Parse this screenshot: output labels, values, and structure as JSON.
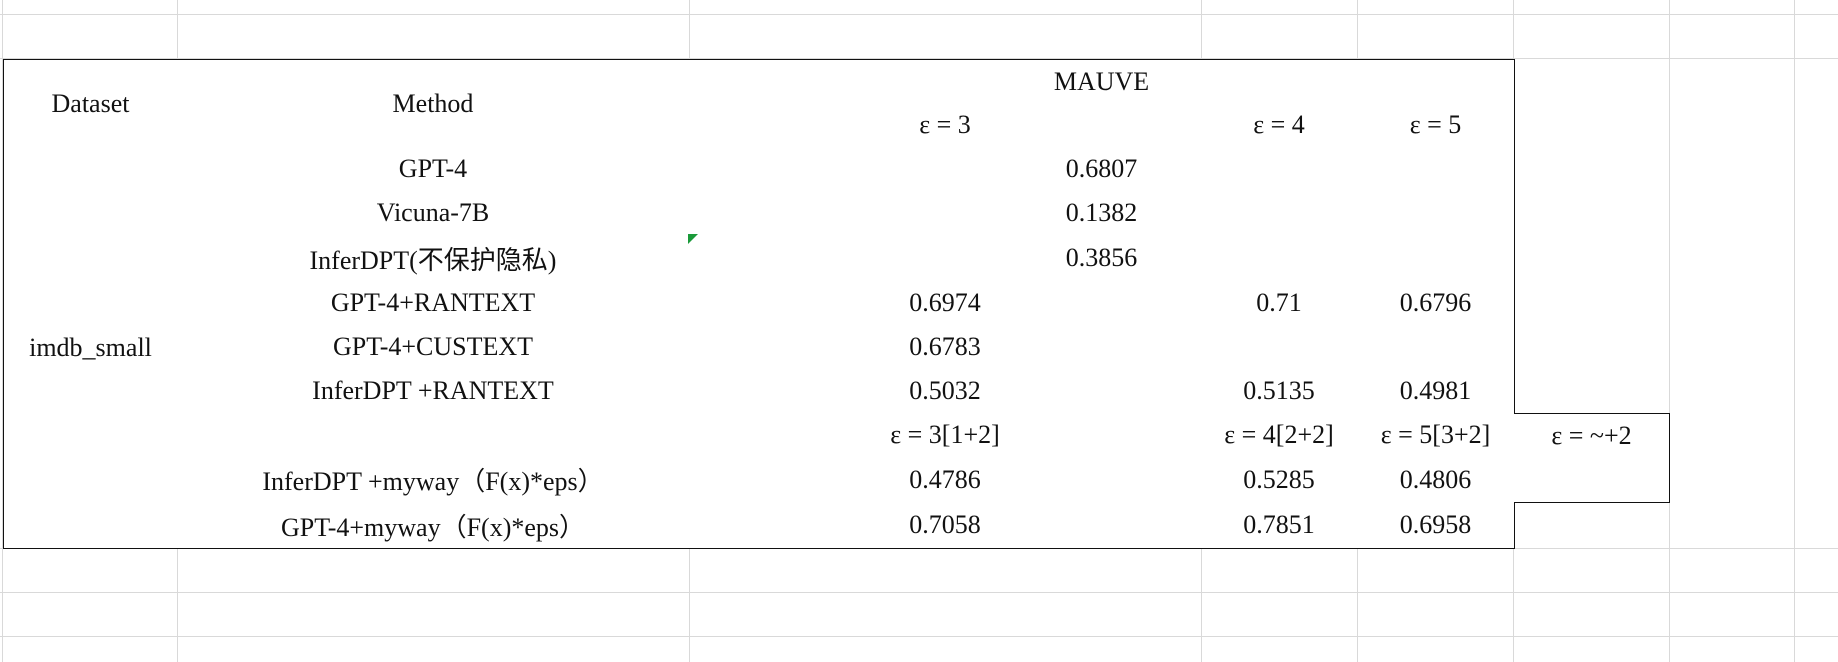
{
  "table": {
    "header": {
      "dataset": "Dataset",
      "method": "Method",
      "mauve": "MAUVE",
      "eps3": "ε = 3",
      "eps4": "ε = 4",
      "eps5": "ε = 5"
    },
    "dataset_name": "imdb_small",
    "rows": [
      {
        "method": "GPT-4",
        "merged": "0.6807"
      },
      {
        "method": "Vicuna-7B",
        "merged": "0.1382"
      },
      {
        "method": "InferDPT(不保护隐私)",
        "merged": "0.3856"
      },
      {
        "method": "GPT-4+RANTEXT",
        "eps3": "0.6974",
        "eps4": "0.71",
        "eps5": "0.6796"
      },
      {
        "method": "GPT-4+CUSTEXT",
        "eps3": "0.6783",
        "eps4": "",
        "eps5": ""
      },
      {
        "method": "InferDPT +RANTEXT",
        "eps3": "0.5032",
        "eps4": "0.5135",
        "eps5": "0.4981"
      },
      {
        "method": "",
        "eps3": "ε = 3[1+2]",
        "eps4": "ε = 4[2+2]",
        "eps5": "ε = 5[3+2]",
        "extra": "ε = ~+2"
      },
      {
        "method": "InferDPT +myway（F(x)*eps）",
        "eps3": "0.4786",
        "eps4": "0.5285",
        "eps5": "0.4806",
        "extra": ""
      },
      {
        "method": "GPT-4+myway（F(x)*eps）",
        "eps3": "0.7058",
        "eps4": "0.7851",
        "eps5": "0.6958"
      }
    ]
  }
}
